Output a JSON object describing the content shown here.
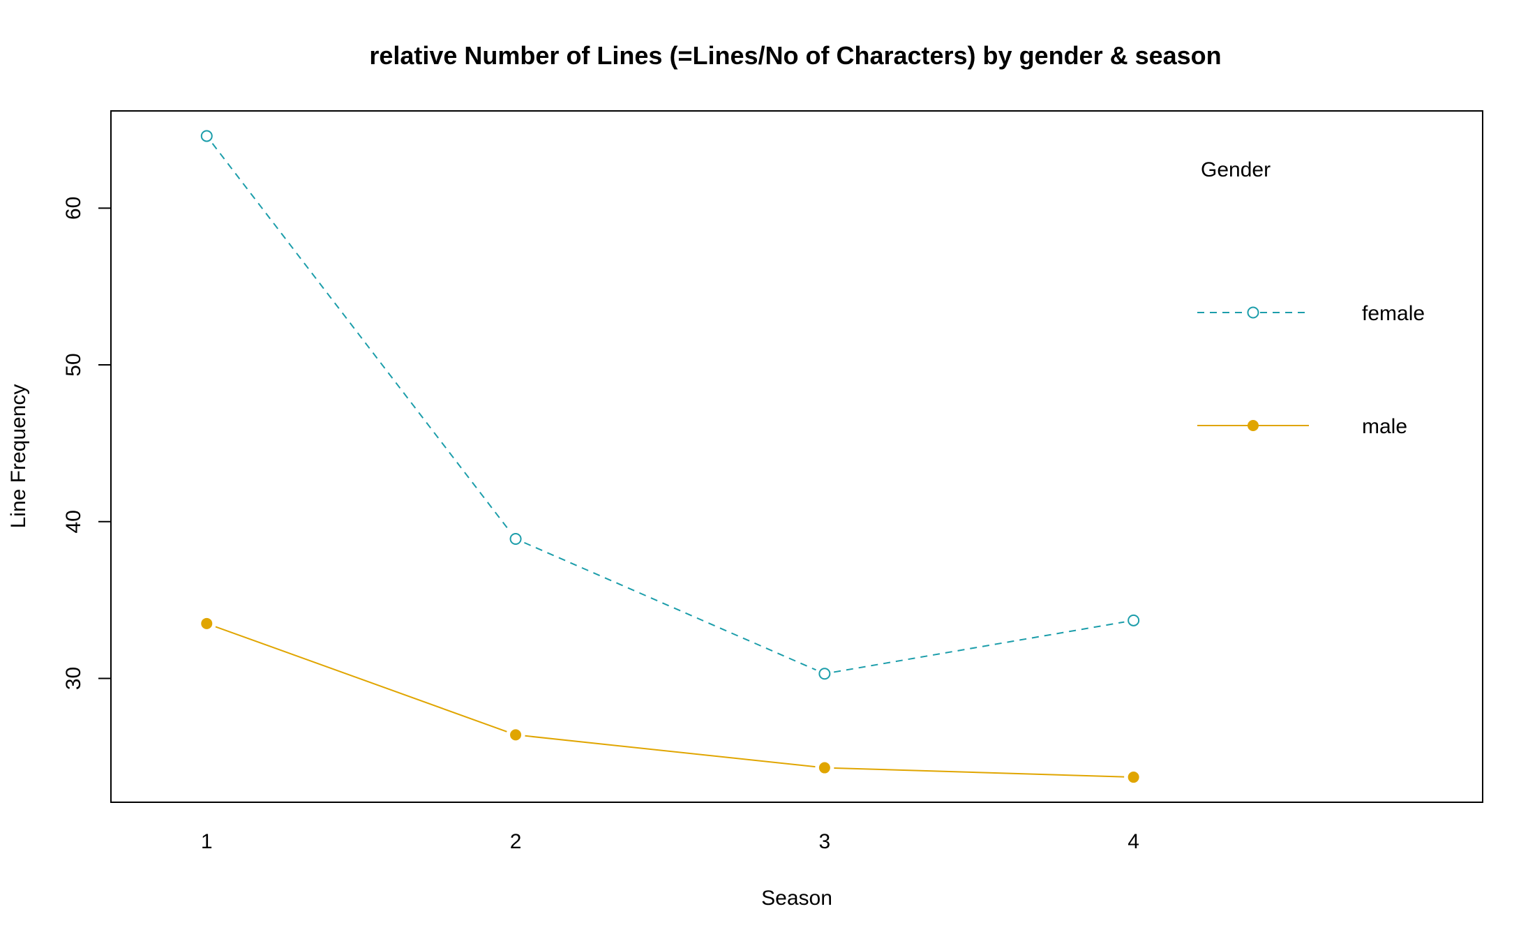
{
  "chart_data": {
    "type": "line",
    "title": "relative Number of Lines (=Lines/No of Characters) by gender & season",
    "xlabel": "Season",
    "ylabel": "Line Frequency",
    "x": [
      1,
      2,
      3,
      4
    ],
    "x_tick_labels": [
      "1",
      "2",
      "3",
      "4"
    ],
    "xlim": [
      0.69,
      5.13
    ],
    "ylim": [
      22.1,
      66.2
    ],
    "y_ticks": [
      30,
      40,
      50,
      60
    ],
    "y_tick_labels": [
      "30",
      "40",
      "50",
      "60"
    ],
    "grid": false,
    "legend": {
      "title": "Gender",
      "position": "top-right",
      "entries": [
        "female",
        "male"
      ]
    },
    "series": [
      {
        "name": "female",
        "values": [
          64.6,
          38.9,
          30.3,
          33.7
        ],
        "color": "#1B9DAA",
        "line_style": "dashed",
        "marker": "open-circle"
      },
      {
        "name": "male",
        "values": [
          33.5,
          26.4,
          24.3,
          23.7
        ],
        "color": "#E0A500",
        "line_style": "solid",
        "marker": "filled-circle"
      }
    ]
  }
}
